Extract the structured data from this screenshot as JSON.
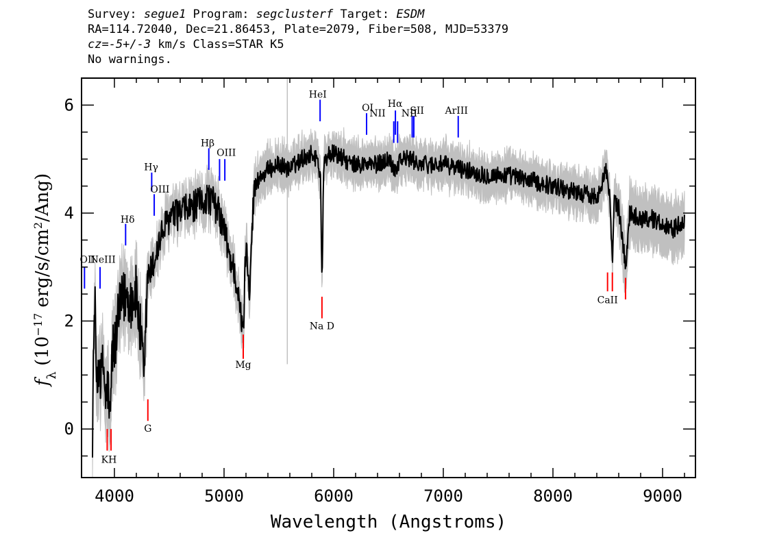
{
  "header": {
    "line1": {
      "survey_label": "Survey: ",
      "survey": "segue1",
      "program_label": " Program: ",
      "program": "segclusterf",
      "target_label": " Target: ",
      "target": "ESDM"
    },
    "line2": "RA=114.72040, Dec=21.86453, Plate=2079, Fiber=508, MJD=53379",
    "line3": {
      "cz": "cz=-5+/-3",
      "rest": " km/s Class=STAR K5"
    },
    "line4": "No warnings."
  },
  "chart_data": {
    "type": "line",
    "xlabel": "Wavelength (Angstroms)",
    "ylabel": "f_λ (10^-17 erg/s/cm^2/Ang)",
    "xlim": [
      3700,
      9300
    ],
    "ylim": [
      -0.9,
      6.5
    ],
    "x_ticks": [
      4000,
      5000,
      6000,
      7000,
      8000,
      9000
    ],
    "y_ticks": [
      0,
      2,
      4,
      6
    ],
    "series": [
      {
        "style": "black",
        "x": [
          3800,
          3820,
          3840,
          3860,
          3880,
          3900,
          3920,
          3940,
          3960,
          3980,
          4000,
          4050,
          4100,
          4150,
          4200,
          4250,
          4270,
          4300,
          4350,
          4400,
          4450,
          4500,
          4600,
          4700,
          4800,
          4850,
          4900,
          4950,
          5000,
          5050,
          5100,
          5150,
          5170,
          5180,
          5200,
          5230,
          5270,
          5300,
          5400,
          5500,
          5600,
          5700,
          5800,
          5850,
          5880,
          5893,
          5910,
          5950,
          6000,
          6100,
          6150,
          6200,
          6300,
          6400,
          6500,
          6563,
          6600,
          6700,
          6800,
          7000,
          7200,
          7400,
          7600,
          7800,
          8000,
          8200,
          8400,
          8480,
          8500,
          8520,
          8542,
          8560,
          8600,
          8662,
          8700,
          8800,
          8900,
          9000,
          9100,
          9200
        ],
        "values": [
          0.0,
          2.5,
          0.6,
          1.4,
          0.9,
          1.2,
          0.5,
          0.8,
          0.0,
          1.5,
          1.5,
          2.2,
          2.5,
          2.4,
          2.5,
          1.5,
          0.7,
          2.8,
          3.0,
          3.4,
          3.7,
          3.9,
          4.0,
          4.1,
          4.2,
          4.3,
          4.2,
          4.0,
          3.7,
          3.2,
          2.9,
          2.1,
          1.8,
          2.1,
          3.5,
          2.6,
          4.3,
          4.6,
          4.8,
          4.9,
          4.8,
          5.0,
          5.1,
          5.0,
          4.7,
          2.7,
          4.9,
          5.1,
          5.1,
          5.0,
          4.9,
          4.9,
          4.9,
          4.9,
          5.0,
          4.8,
          5.0,
          5.0,
          4.9,
          4.9,
          4.8,
          4.7,
          4.7,
          4.6,
          4.5,
          4.4,
          4.3,
          4.8,
          4.6,
          4.3,
          3.0,
          4.2,
          4.1,
          3.0,
          4.0,
          3.9,
          3.9,
          3.8,
          3.7,
          3.9
        ]
      },
      {
        "style": "grey",
        "x": [
          3800,
          3820,
          3840,
          3860,
          3880,
          3900,
          3920,
          3940,
          3960,
          3980,
          4000,
          4050,
          4100,
          4150,
          4200,
          4250,
          4270,
          4300,
          4350,
          4400,
          4450,
          4500,
          4600,
          4700,
          4800,
          4850,
          4900,
          4950,
          5000,
          5050,
          5100,
          5150,
          5170,
          5180,
          5200,
          5230,
          5270,
          5300,
          5400,
          5500,
          5600,
          5700,
          5800,
          5850,
          5880,
          5893,
          5910,
          5950,
          6000,
          6100,
          6150,
          6200,
          6300,
          6400,
          6500,
          6563,
          6600,
          6700,
          6800,
          7000,
          7200,
          7400,
          7600,
          7800,
          8000,
          8200,
          8400,
          8480,
          8500,
          8520,
          8542,
          8560,
          8600,
          8662,
          8700,
          8800,
          8900,
          9000,
          9100,
          9200
        ],
        "values": [
          0.0,
          2.5,
          0.6,
          1.4,
          0.9,
          1.2,
          0.5,
          0.8,
          0.0,
          1.5,
          1.5,
          2.2,
          2.5,
          2.4,
          2.5,
          1.5,
          0.7,
          2.8,
          3.0,
          3.4,
          3.7,
          3.9,
          4.0,
          4.1,
          4.2,
          4.3,
          4.2,
          4.0,
          3.7,
          3.2,
          2.9,
          2.1,
          1.8,
          2.1,
          3.5,
          2.6,
          4.3,
          4.6,
          4.8,
          4.9,
          4.8,
          5.0,
          5.1,
          5.0,
          4.7,
          2.7,
          4.9,
          5.1,
          5.1,
          5.0,
          4.9,
          4.9,
          4.9,
          4.9,
          5.0,
          4.8,
          5.0,
          5.0,
          4.9,
          4.9,
          4.8,
          4.7,
          4.7,
          4.6,
          4.5,
          4.4,
          4.3,
          4.8,
          4.6,
          4.3,
          3.0,
          4.2,
          4.1,
          3.0,
          4.0,
          3.9,
          3.9,
          3.8,
          3.7,
          3.9
        ]
      }
    ],
    "sky_line": {
      "x": 5577,
      "y_range": [
        1.2,
        6.5
      ]
    },
    "emission_lines": [
      {
        "label": "OII",
        "x": 3727,
        "y_range": [
          2.6,
          3.0
        ]
      },
      {
        "label": "NeIII",
        "x": 3869,
        "y_range": [
          2.6,
          3.0
        ]
      },
      {
        "label": "Hδ",
        "x": 4102,
        "y_range": [
          3.4,
          3.8
        ]
      },
      {
        "label": "Hγ",
        "x": 4340,
        "y_range": [
          4.4,
          4.75
        ]
      },
      {
        "label": "OIII",
        "x": 4363,
        "y_range": [
          3.95,
          4.35
        ]
      },
      {
        "label": "Hβ",
        "x": 4861,
        "y_range": [
          4.8,
          5.2
        ]
      },
      {
        "label": "OIII",
        "x": 4959,
        "y_range": [
          4.6,
          5.0
        ]
      },
      {
        "label": "OIII",
        "x": 5007,
        "y_range": [
          4.6,
          5.0
        ]
      },
      {
        "label": "HeI",
        "x": 5876,
        "y_range": [
          5.7,
          6.1
        ]
      },
      {
        "label": "OI",
        "x": 6300,
        "y_range": [
          5.45,
          5.85
        ]
      },
      {
        "label": "NII",
        "x": 6548,
        "y_range": [
          5.3,
          5.7
        ]
      },
      {
        "label": "Hα",
        "x": 6563,
        "y_range": [
          5.45,
          5.9
        ]
      },
      {
        "label": "NII",
        "x": 6583,
        "y_range": [
          5.3,
          5.7
        ]
      },
      {
        "label": "SII",
        "x": 6716,
        "y_range": [
          5.4,
          5.8
        ]
      },
      {
        "label": "SII",
        "x": 6731,
        "y_range": [
          5.4,
          5.8
        ]
      },
      {
        "label": "ArIII",
        "x": 7136,
        "y_range": [
          5.4,
          5.8
        ]
      }
    ],
    "emission_labels": [
      "OII",
      "NeIII",
      "Hδ",
      "Hγ",
      "OIII",
      "Hβ",
      "OIII",
      "HeI",
      "OI",
      "NII",
      "Hα",
      "NII",
      "SII",
      "ArIII"
    ],
    "absorption_lines": [
      {
        "label": "K",
        "x": 3934,
        "y_range": [
          -0.4,
          0.0
        ]
      },
      {
        "label": "H",
        "x": 3969,
        "y_range": [
          -0.4,
          0.0
        ]
      },
      {
        "label": "G",
        "x": 4305,
        "y_range": [
          0.15,
          0.55
        ]
      },
      {
        "label": "Mg",
        "x": 5175,
        "y_range": [
          1.3,
          1.75
        ]
      },
      {
        "label": "Na D",
        "x": 5893,
        "y_range": [
          2.05,
          2.45
        ]
      },
      {
        "label": "CaII",
        "x": 8498,
        "y_range": [
          2.55,
          2.9
        ]
      },
      {
        "label": "CaII",
        "x": 8542,
        "y_range": [
          2.55,
          2.9
        ]
      },
      {
        "label": "CaII",
        "x": 8662,
        "y_range": [
          2.4,
          2.8
        ]
      }
    ],
    "absorption_labels": [
      "KH",
      "G",
      "Mg",
      "Na D",
      "CaII"
    ],
    "colors": {
      "flux": "#000000",
      "error": "#c0c0c0",
      "emission": "#0000ff",
      "absorption": "#ff0000"
    }
  }
}
